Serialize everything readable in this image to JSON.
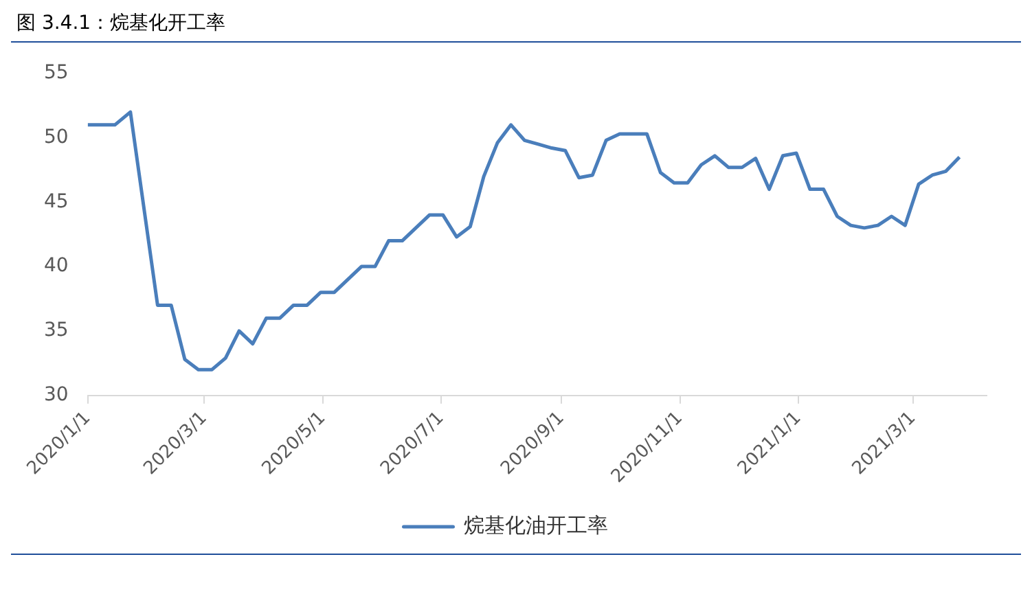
{
  "chart_data": {
    "type": "line",
    "title": "图 3.4.1：烷基化开工率",
    "x": [
      "2020-01-01",
      "2020-01-08",
      "2020-01-15",
      "2020-01-23",
      "2020-02-06",
      "2020-02-13",
      "2020-02-20",
      "2020-02-27",
      "2020-03-05",
      "2020-03-12",
      "2020-03-19",
      "2020-03-26",
      "2020-04-02",
      "2020-04-09",
      "2020-04-16",
      "2020-04-23",
      "2020-04-30",
      "2020-05-07",
      "2020-05-14",
      "2020-05-21",
      "2020-05-28",
      "2020-06-04",
      "2020-06-11",
      "2020-06-18",
      "2020-06-25",
      "2020-07-02",
      "2020-07-09",
      "2020-07-16",
      "2020-07-23",
      "2020-07-30",
      "2020-08-06",
      "2020-08-13",
      "2020-08-20",
      "2020-08-27",
      "2020-09-03",
      "2020-09-10",
      "2020-09-17",
      "2020-09-24",
      "2020-10-01",
      "2020-10-08",
      "2020-10-15",
      "2020-10-22",
      "2020-10-29",
      "2020-11-05",
      "2020-11-12",
      "2020-11-19",
      "2020-11-26",
      "2020-12-03",
      "2020-12-10",
      "2020-12-17",
      "2020-12-24",
      "2020-12-31",
      "2021-01-07",
      "2021-01-14",
      "2021-01-21",
      "2021-01-28",
      "2021-02-04",
      "2021-02-11",
      "2021-02-18",
      "2021-02-25",
      "2021-03-04",
      "2021-03-11",
      "2021-03-18",
      "2021-03-25"
    ],
    "series": [
      {
        "name": "烷基化油开工率",
        "color": "#4a7ebb",
        "values": [
          51,
          51,
          51,
          52,
          37,
          37,
          32.8,
          32,
          32,
          32.9,
          35,
          34,
          36,
          36,
          37,
          37,
          38,
          38,
          39,
          40,
          40,
          42,
          42,
          43,
          44,
          44,
          42.3,
          43.1,
          47,
          49.6,
          51,
          49.8,
          49.5,
          49.2,
          49,
          46.9,
          47.1,
          49.8,
          50.3,
          50.3,
          50.3,
          47.3,
          46.5,
          46.5,
          47.9,
          48.6,
          47.7,
          47.7,
          48.4,
          46,
          48.6,
          48.8,
          46,
          46,
          43.9,
          43.2,
          43,
          43.2,
          43.9,
          43.2,
          46.4,
          47.1,
          47.4,
          48.5
        ]
      }
    ],
    "xlim": [
      "2020-01-01",
      "2021-04-08"
    ],
    "xticks": [
      {
        "value": "2020-01-01",
        "label": "2020/1/1"
      },
      {
        "value": "2020-03-01",
        "label": "2020/3/1"
      },
      {
        "value": "2020-05-01",
        "label": "2020/5/1"
      },
      {
        "value": "2020-07-01",
        "label": "2020/7/1"
      },
      {
        "value": "2020-09-01",
        "label": "2020/9/1"
      },
      {
        "value": "2020-11-01",
        "label": "2020/11/1"
      },
      {
        "value": "2021-01-01",
        "label": "2021/1/1"
      },
      {
        "value": "2021-03-01",
        "label": "2021/3/1"
      }
    ],
    "ylim": [
      30,
      55
    ],
    "yticks": [
      30,
      35,
      40,
      45,
      50,
      55
    ],
    "grid": false,
    "legend": "bottom",
    "marker": "none",
    "line_style": "solid"
  }
}
